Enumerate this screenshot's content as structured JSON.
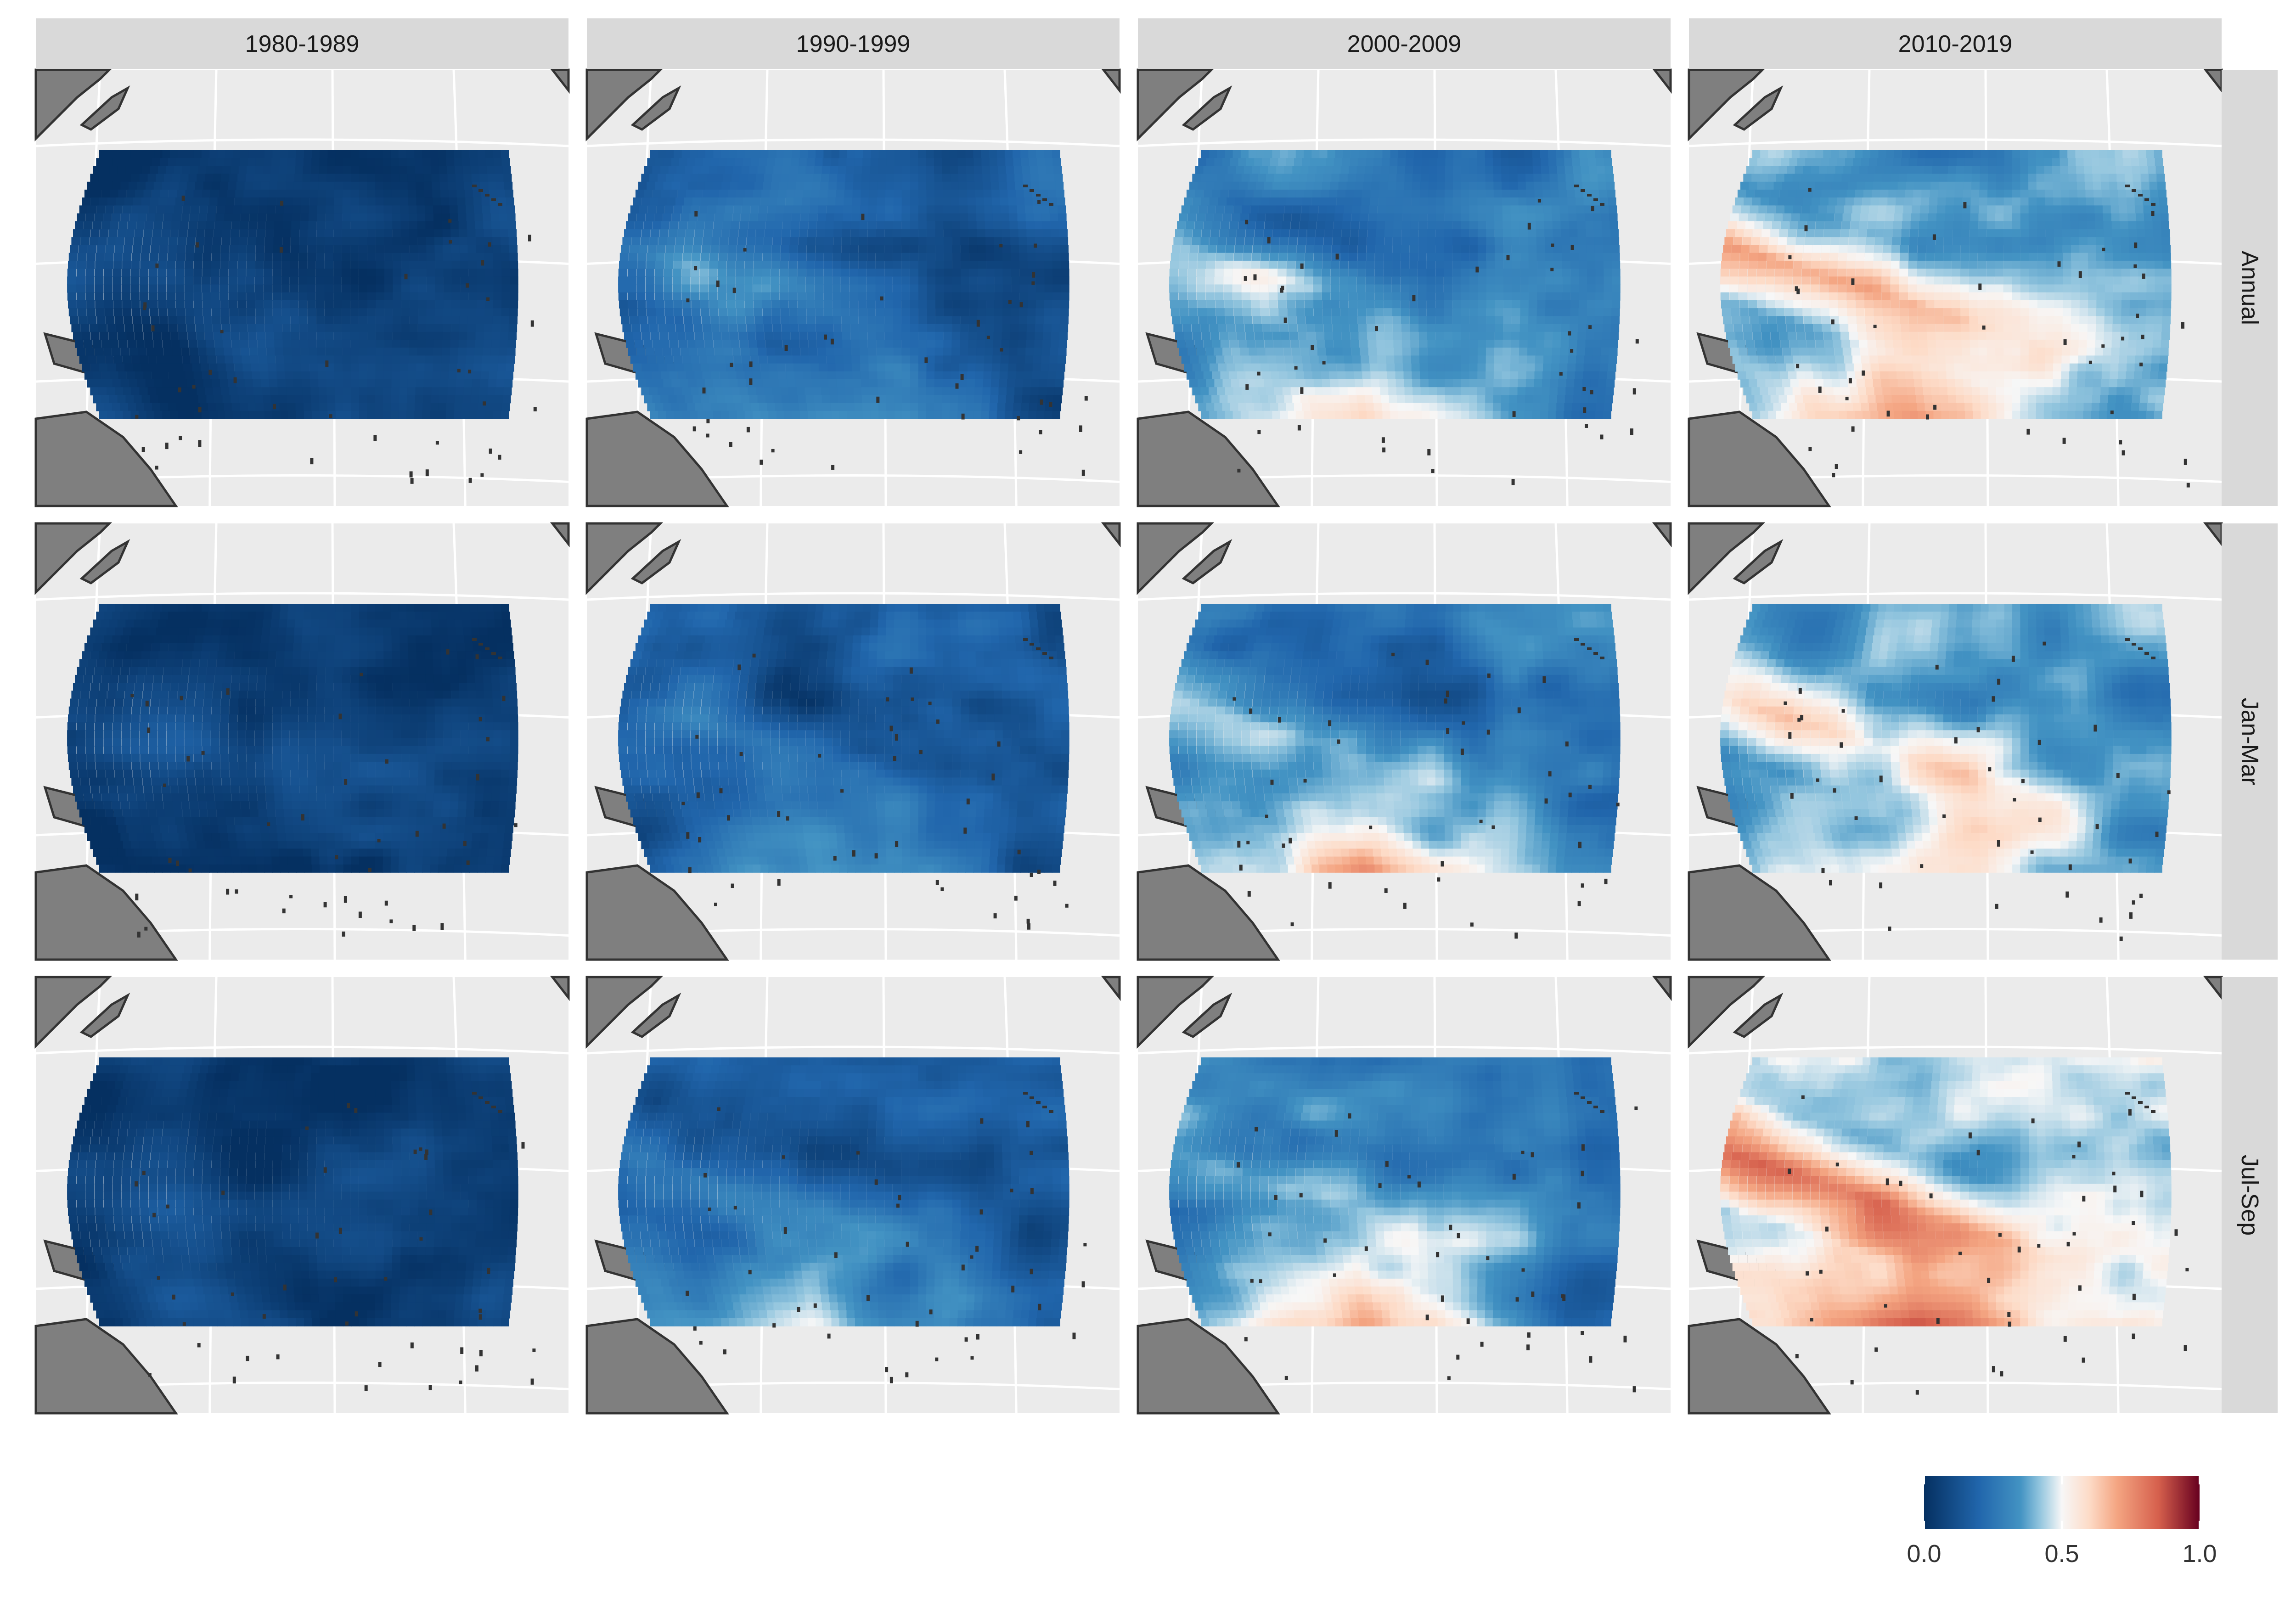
{
  "chart_data": {
    "type": "heatmap",
    "title": "",
    "xlabel": "",
    "ylabel": "",
    "facet_columns": [
      "1980-1989",
      "1990-1999",
      "2000-2009",
      "2010-2019"
    ],
    "facet_rows": [
      "Annual",
      "Jan-Mar",
      "Jul-Sep"
    ],
    "colorbar": {
      "range": [
        0,
        1
      ],
      "ticks": [
        0.0,
        0.5,
        1.0
      ],
      "tick_labels": [
        "0.0",
        "0.5",
        "1.0"
      ],
      "colors": {
        "0.0": "#053061",
        "0.2": "#2166ac",
        "0.35": "#4393c3",
        "0.42": "#92c5de",
        "0.5": "#f7f7f7",
        "0.6": "#fddbc7",
        "0.7": "#f4a582",
        "0.85": "#d6604d",
        "1.0": "#67001f"
      }
    },
    "panel_summary": [
      {
        "period": "1980-1989",
        "season": "Annual",
        "approx_range": [
          0.0,
          0.3
        ]
      },
      {
        "period": "1990-1999",
        "season": "Annual",
        "approx_range": [
          0.0,
          0.45
        ]
      },
      {
        "period": "2000-2009",
        "season": "Annual",
        "approx_range": [
          0.0,
          0.6
        ]
      },
      {
        "period": "2010-2019",
        "season": "Annual",
        "approx_range": [
          0.0,
          0.75
        ]
      },
      {
        "period": "1980-1989",
        "season": "Jan-Mar",
        "approx_range": [
          0.0,
          0.35
        ]
      },
      {
        "period": "1990-1999",
        "season": "Jan-Mar",
        "approx_range": [
          0.0,
          0.45
        ]
      },
      {
        "period": "2000-2009",
        "season": "Jan-Mar",
        "approx_range": [
          0.0,
          0.7
        ]
      },
      {
        "period": "2010-2019",
        "season": "Jan-Mar",
        "approx_range": [
          0.0,
          0.65
        ]
      },
      {
        "period": "1980-1989",
        "season": "Jul-Sep",
        "approx_range": [
          0.0,
          0.3
        ]
      },
      {
        "period": "1990-1999",
        "season": "Jul-Sep",
        "approx_range": [
          0.0,
          0.6
        ]
      },
      {
        "period": "2000-2009",
        "season": "Jul-Sep",
        "approx_range": [
          0.0,
          0.7
        ]
      },
      {
        "period": "2010-2019",
        "season": "Jul-Sep",
        "approx_range": [
          0.0,
          0.9
        ]
      }
    ],
    "background_color": "#ebebeb",
    "land_color": "#7f7f7f",
    "strip_color": "#d9d9d9",
    "grid": true,
    "legend_placement": "bottom-right"
  }
}
